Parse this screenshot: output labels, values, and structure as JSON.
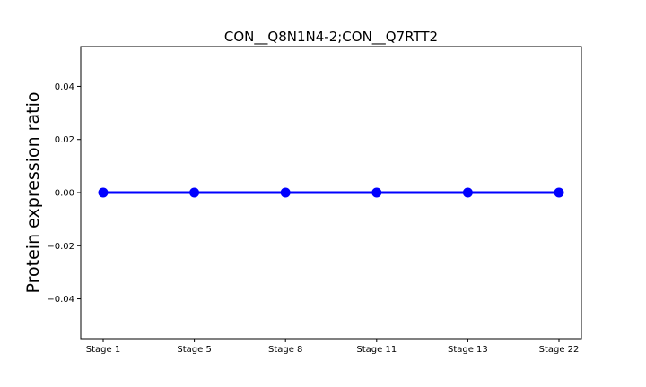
{
  "chart_data": {
    "type": "line",
    "title": "CON__Q8N1N4-2;CON__Q7RTT2",
    "xlabel": "",
    "ylabel": "Protein expression ratio",
    "categories": [
      "Stage 1",
      "Stage 5",
      "Stage 8",
      "Stage 11",
      "Stage 13",
      "Stage 22"
    ],
    "series": [
      {
        "values": [
          0,
          0,
          0,
          0,
          0,
          0
        ],
        "color": "#0000ff"
      }
    ],
    "ylim": [
      -0.055,
      0.055
    ],
    "yticks": [
      -0.04,
      -0.02,
      0.0,
      0.02,
      0.04
    ],
    "ytick_labels": [
      "−0.04",
      "−0.02",
      "0.00",
      "0.02",
      "0.04"
    ],
    "grid": false,
    "legend": "none"
  }
}
